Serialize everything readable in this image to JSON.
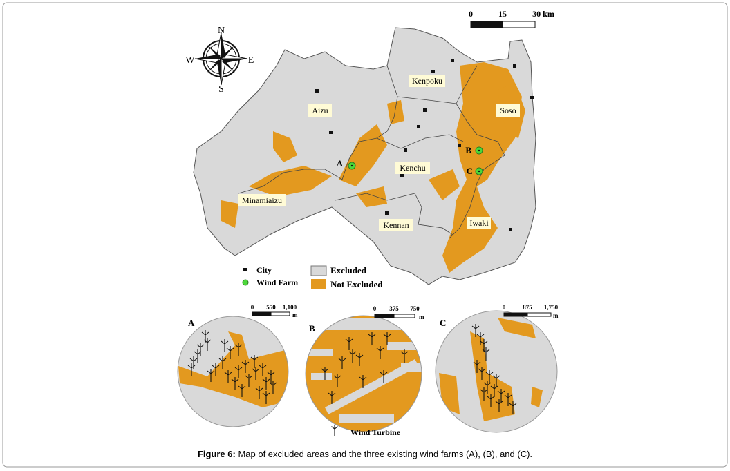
{
  "compass": {
    "north": "N",
    "east": "E",
    "south": "S",
    "west": "W"
  },
  "scale_bar": {
    "labels": [
      "0",
      "15",
      "30 km"
    ]
  },
  "regions": [
    "Kenpoku",
    "Aizu",
    "Soso",
    "Kenchu",
    "Minamiaizu",
    "Kennan",
    "Iwaki"
  ],
  "wind_farms": [
    "A",
    "B",
    "C"
  ],
  "legend": {
    "city": "City",
    "wind_farm": "Wind Farm",
    "excluded": "Excluded",
    "not_excluded": "Not Excluded"
  },
  "insets": [
    {
      "label": "A",
      "scale": [
        "0",
        "550",
        "1,100"
      ],
      "unit": "m"
    },
    {
      "label": "B",
      "scale": [
        "0",
        "375",
        "750"
      ],
      "unit": "m"
    },
    {
      "label": "C",
      "scale": [
        "0",
        "875",
        "1,750"
      ],
      "unit": "m"
    }
  ],
  "turbine_legend": "Wind Turbine",
  "caption": {
    "label": "Figure 6:",
    "text": " Map of excluded areas and the three existing wind farms (A), (B), and (C)."
  }
}
